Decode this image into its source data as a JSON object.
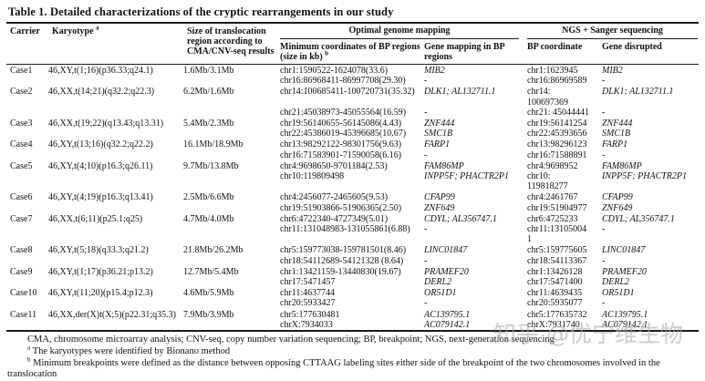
{
  "title": "Table 1. Detailed characterizations of the cryptic rearrangements in our study",
  "table": {
    "headers": {
      "carrier": "Carrier",
      "karyotype": "Karyotype",
      "karyotype_sup": "a",
      "size": "Size of translocation region according to CMA/CNV-seq results",
      "ogm_group": "Optimal genome mapping",
      "ngs_group": "NGS + Sanger sequencing",
      "min_coords": "Minimum coordinates of BP regions (size in kb)",
      "min_coords_sup": "b",
      "gene_mapping": "Gene mapping in BP regions",
      "bp_coordinate": "BP coordinate",
      "gene_disrupted": "Gene disrupted"
    },
    "rows": [
      {
        "carrier": "Case1",
        "karyotype": "46,XY,t(1;16)(p36.33;q24.1)",
        "size": "1.6Mb/3.1Mb",
        "lines": [
          {
            "coords": "chr1:1590522-1624078(33.6)",
            "gene_map": "MIB2",
            "bp": "chr1:1623945",
            "gene_dis": "MIB2"
          },
          {
            "coords": "chr16:86968411-86997708(29.30)",
            "gene_map": "-",
            "bp": "chr16:86969589",
            "gene_dis": "-"
          }
        ]
      },
      {
        "carrier": "Case2",
        "karyotype": "46,XX,t(14;21)(q32.2;q22.3)",
        "size": "6.2Mb/1.6Mb",
        "lines": [
          {
            "coords": "chr14:100685411-100720731(35.32)",
            "gene_map": "DLK1; AL132711.1",
            "bp": "chr14:",
            "gene_dis": "DLK1; AL132711.1"
          },
          {
            "coords": "",
            "gene_map": "",
            "bp": "100697369",
            "gene_dis": ""
          },
          {
            "coords": "chr21:45038973-45055564(16.59)",
            "gene_map": "-",
            "bp": "chr21: 45044441",
            "gene_dis": "-"
          }
        ]
      },
      {
        "carrier": "Case3",
        "karyotype": "46,XX,t(19;22)(q13.43;q13.31)",
        "size": "5.4Mb/2.3Mb",
        "lines": [
          {
            "coords": "chr19:56140655-56145086(4.43)",
            "gene_map": "ZNF444",
            "bp": "chr19:56141254",
            "gene_dis": "ZNF444"
          },
          {
            "coords": "chr22:45386019-45396685(10.67)",
            "gene_map": "SMC1B",
            "bp": "chr22:45393656",
            "gene_dis": "SMC1B"
          }
        ]
      },
      {
        "carrier": "Case4",
        "karyotype": "46,XY,t(13;16)(q32.2;q22.2)",
        "size": "16.1Mb/18.9Mb",
        "lines": [
          {
            "coords": "chr13:98292122-98301756(9.63)",
            "gene_map": "FARP1",
            "bp": "chr13:98296123",
            "gene_dis": "FARP1"
          },
          {
            "coords": "chr16:71583901-71590058(6.16)",
            "gene_map": "-",
            "bp": "chr16:71588891",
            "gene_dis": "-"
          }
        ]
      },
      {
        "carrier": "Case5",
        "karyotype": "46,XY,t(4;10)(p16.3;q26.11)",
        "size": "9.7Mb/13.8Mb",
        "lines": [
          {
            "coords": "chr4:9698650-9701184(2.53)",
            "gene_map": "FAM86MP",
            "bp": "chr4:9698952",
            "gene_dis": "FAM86MP"
          },
          {
            "coords": "chr10:119809498",
            "gene_map": "INPP5F; PHACTR2P1",
            "bp": "chr10:",
            "gene_dis": "INPP5F; PHACTR2P1"
          },
          {
            "coords": "",
            "gene_map": "",
            "bp": "119818277",
            "gene_dis": ""
          }
        ]
      },
      {
        "carrier": "Case6",
        "karyotype": "46,XY,t(4;19)(p16.3;q13.41)",
        "size": "2.5Mb/6.6Mb",
        "lines": [
          {
            "coords": "chr4:2456077-2465605(9.53)",
            "gene_map": "CFAP99",
            "bp": "chr4:2461767",
            "gene_dis": "CFAP99"
          },
          {
            "coords": "chr19:51903866-51906365(2.50)",
            "gene_map": "ZNF649",
            "bp": "chr19:51904977",
            "gene_dis": "ZNF649"
          }
        ]
      },
      {
        "carrier": "Case7",
        "karyotype": "46,XX,t(6;11)(p25.1;q25)",
        "size": "4.7Mb/4.0Mb",
        "lines": [
          {
            "coords": "chr6:4722340-4727349(5.01)",
            "gene_map": "CDYL; AL356747.1",
            "bp": "chr6:4725233",
            "gene_dis": "CDYL; AL356747.1"
          },
          {
            "coords": "chr11:131048983-131055861(6.88)",
            "gene_map": "-",
            "bp": "chr11:13105004",
            "gene_dis": "-"
          },
          {
            "coords": "",
            "gene_map": "",
            "bp": "1",
            "gene_dis": ""
          }
        ]
      },
      {
        "carrier": "Case8",
        "karyotype": "46,XY,t(5;18)(q33.3;q21.2)",
        "size": "21.8Mb/26.2Mb",
        "lines": [
          {
            "coords": "chr5:159773038-159781501(8.46)",
            "gene_map": "LINC01847",
            "bp": "chr5:159775605",
            "gene_dis": "LINC01847"
          },
          {
            "coords": "chr18:54112689-54121328 (8.64)",
            "gene_map": "-",
            "bp": "chr18:54113367",
            "gene_dis": "-"
          }
        ]
      },
      {
        "carrier": "Case9",
        "karyotype": "46,XY,t(1;17)(p36.21;p13.2)",
        "size": "12.7Mb/5.4Mb",
        "lines": [
          {
            "coords": "chr1:13421159-13440830(19.67)",
            "gene_map": "PRAMEF20",
            "bp": "chr1:13426128",
            "gene_dis": "PRAMEF20"
          },
          {
            "coords": "chr17:5471457",
            "gene_map": "DERL2",
            "bp": "chr17:5471400",
            "gene_dis": "DERL2"
          }
        ]
      },
      {
        "carrier": "Case10",
        "karyotype": "46,XY,t(11;20)(p15.4;p12.3)",
        "size": "4.6Mb/5.9Mb",
        "lines": [
          {
            "coords": "chr11:4637744",
            "gene_map": "OR51D1",
            "bp": "chr11:4639435",
            "gene_dis": "OR51D1"
          },
          {
            "coords": "chr20:5933427",
            "gene_map": "-",
            "bp": "chr20:5935077",
            "gene_dis": "-"
          }
        ]
      },
      {
        "carrier": "Case11",
        "karyotype": "46,XX,der(X)t(X;5)(p22.31;q35.3)",
        "size": "7.9Mb/3.9Mb",
        "lines": [
          {
            "coords": "chr5:177630481",
            "gene_map": "AC139795.1",
            "bp": "chr5:177635732",
            "gene_dis": "AC139795.1"
          },
          {
            "coords": "chrX:7934033",
            "gene_map": "AC079142.1",
            "bp": "chrX:7931740",
            "gene_dis": "AC079142.1"
          }
        ]
      }
    ]
  },
  "footnotes": {
    "abbreviations": "CMA, chromosome microarray analysis; CNV-seq, copy number variation sequencing; BP, breakpoint; NGS, next-generation sequencing",
    "a_sup": "a",
    "a_text": "The karyotypes were identified by Bionano method",
    "b_sup": "b",
    "b_text": "Minimum breakpoints were defined as the distance between opposing CTTAAG labeling sites either side of the breakpoint of the two chromosomes involved in the translocation"
  },
  "watermark": "知乎 @优宁维生物",
  "colors": {
    "background": "#ffffff",
    "text": "#111111",
    "rule": "#1b1b1b",
    "watermark": "#acacac"
  }
}
